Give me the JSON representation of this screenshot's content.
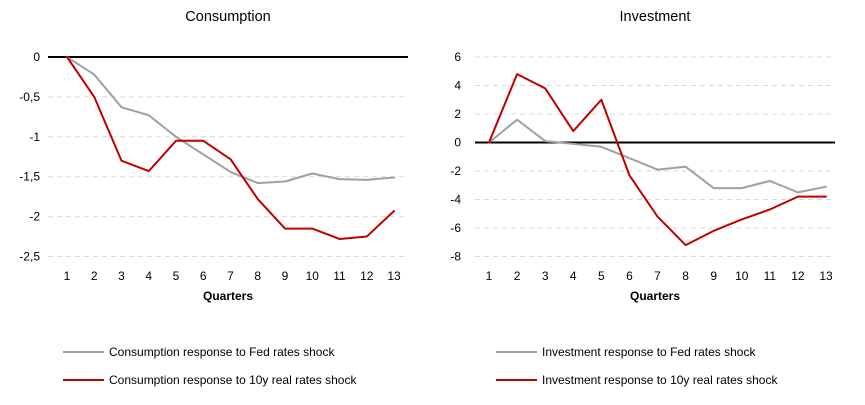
{
  "colors": {
    "gray_series": "#A0A0A0",
    "red_series": "#C00000",
    "gridline": "#D9D9D9",
    "zero_axis": "#000000",
    "text": "#000000"
  },
  "chart_data": [
    {
      "type": "line",
      "title": "Consumption",
      "xlabel": "Quarters",
      "x": [
        1,
        2,
        3,
        4,
        5,
        6,
        7,
        8,
        9,
        10,
        11,
        12,
        13
      ],
      "xtick_labels": [
        "1",
        "2",
        "3",
        "4",
        "5",
        "6",
        "7",
        "8",
        "9",
        "10",
        "11",
        "12",
        "13"
      ],
      "ylim": [
        -2.5,
        0
      ],
      "yticks": [
        0,
        -0.5,
        -1,
        -1.5,
        -2,
        -2.5
      ],
      "ytick_labels": [
        "0",
        "-0,5",
        "-1",
        "-1,5",
        "-2",
        "-2,5"
      ],
      "grid": "horizontal-dashed",
      "legend_position": "bottom-left",
      "series": [
        {
          "name": "Consumption response to Fed rates shock",
          "color": "#A0A0A0",
          "values": [
            0,
            -0.22,
            -0.63,
            -0.73,
            -1.0,
            -1.22,
            -1.44,
            -1.58,
            -1.56,
            -1.46,
            -1.53,
            -1.54,
            -1.51
          ]
        },
        {
          "name": "Consumption response to 10y real rates shock",
          "color": "#C00000",
          "values": [
            0,
            -0.5,
            -1.3,
            -1.43,
            -1.05,
            -1.05,
            -1.28,
            -1.78,
            -2.15,
            -2.15,
            -2.28,
            -2.25,
            -1.93
          ]
        }
      ]
    },
    {
      "type": "line",
      "title": "Investment",
      "xlabel": "Quarters",
      "x": [
        1,
        2,
        3,
        4,
        5,
        6,
        7,
        8,
        9,
        10,
        11,
        12,
        13
      ],
      "xtick_labels": [
        "1",
        "2",
        "3",
        "4",
        "5",
        "6",
        "7",
        "8",
        "9",
        "10",
        "11",
        "12",
        "13"
      ],
      "ylim": [
        -8,
        6
      ],
      "yticks": [
        6,
        4,
        2,
        0,
        -2,
        -4,
        -6,
        -8
      ],
      "ytick_labels": [
        "6",
        "4",
        "2",
        "0",
        "-2",
        "-4",
        "-6",
        "-8"
      ],
      "grid": "horizontal-dashed",
      "legend_position": "bottom-left",
      "series": [
        {
          "name": "Investment response to Fed rates shock",
          "color": "#A0A0A0",
          "values": [
            0,
            1.6,
            0.1,
            -0.1,
            -0.3,
            -1.1,
            -1.9,
            -1.7,
            -3.2,
            -3.2,
            -2.7,
            -3.5,
            -3.1
          ]
        },
        {
          "name": "Investment response to 10y real rates shock",
          "color": "#C00000",
          "values": [
            0,
            4.8,
            3.8,
            0.8,
            3.0,
            -2.3,
            -5.2,
            -7.2,
            -6.2,
            -5.4,
            -4.7,
            -3.8,
            -3.8
          ]
        }
      ]
    }
  ]
}
